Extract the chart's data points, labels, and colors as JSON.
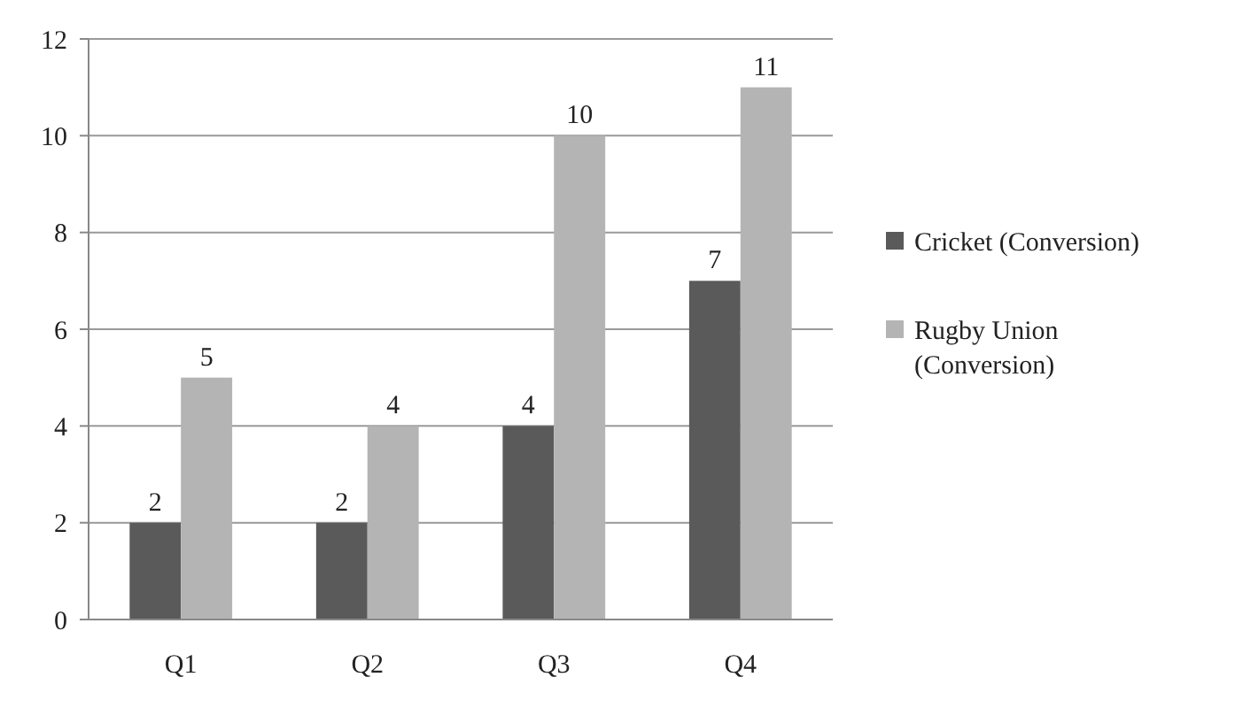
{
  "chart_data": {
    "type": "bar",
    "categories": [
      "Q1",
      "Q2",
      "Q3",
      "Q4"
    ],
    "series": [
      {
        "name": "Cricket (Conversion)",
        "color": "#5a5a5a",
        "values": [
          2,
          2,
          4,
          7
        ]
      },
      {
        "name": "Rugby Union (Conversion)",
        "color": "#b4b4b4",
        "values": [
          5,
          4,
          10,
          11
        ]
      }
    ],
    "ylim": [
      0,
      12
    ],
    "yticks": [
      0,
      2,
      4,
      6,
      8,
      10,
      12
    ],
    "grid": "y",
    "legend": "right",
    "data_labels": true
  }
}
